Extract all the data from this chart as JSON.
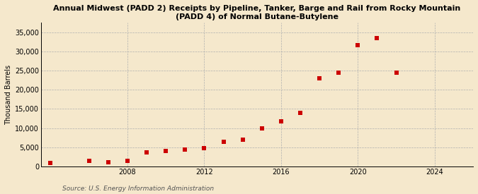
{
  "title": "Annual Midwest (PADD 2) Receipts by Pipeline, Tanker, Barge and Rail from Rocky Mountain\n(PADD 4) of Normal Butane-Butylene",
  "ylabel": "Thousand Barrels",
  "source": "Source: U.S. Energy Information Administration",
  "background_color": "#f5e8cc",
  "plot_background": "#f5e8cc",
  "marker_color": "#cc0000",
  "marker": "s",
  "marker_size": 4,
  "xlim": [
    2003.5,
    2026
  ],
  "ylim": [
    0,
    37500
  ],
  "yticks": [
    0,
    5000,
    10000,
    15000,
    20000,
    25000,
    30000,
    35000
  ],
  "xticks": [
    2008,
    2012,
    2016,
    2020,
    2024
  ],
  "years": [
    2004,
    2006,
    2007,
    2008,
    2009,
    2010,
    2011,
    2012,
    2013,
    2014,
    2015,
    2016,
    2017,
    2018,
    2019,
    2020,
    2021,
    2022
  ],
  "values": [
    900,
    1400,
    1200,
    1400,
    3700,
    4000,
    4500,
    4700,
    6400,
    7000,
    10000,
    11700,
    14000,
    23000,
    24500,
    31700,
    33500,
    24500
  ]
}
